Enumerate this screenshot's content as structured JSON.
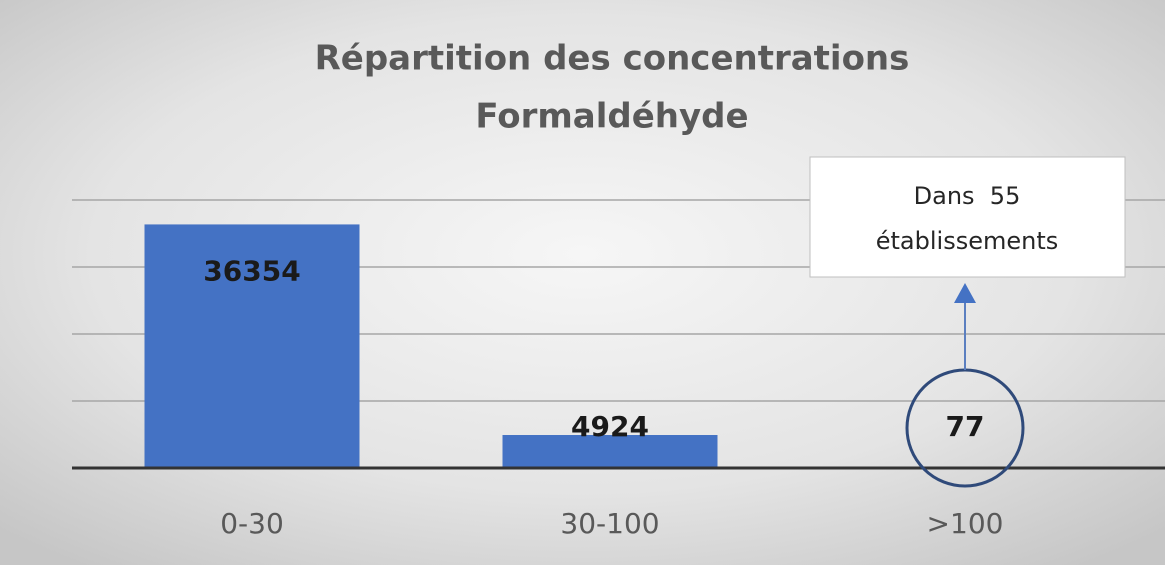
{
  "chart_data": {
    "type": "bar",
    "title": [
      "Répartition des concentrations",
      "Formaldéhyde"
    ],
    "categories": [
      "0-30",
      "30-100",
      ">100"
    ],
    "values": [
      36354,
      4924,
      77
    ],
    "color": "#4472c4",
    "ylim": [
      0,
      40000
    ],
    "yticks": [
      0,
      10000,
      20000,
      30000,
      40000
    ],
    "grid": true,
    "annotation": [
      "Dans  55",
      "établissements"
    ]
  }
}
